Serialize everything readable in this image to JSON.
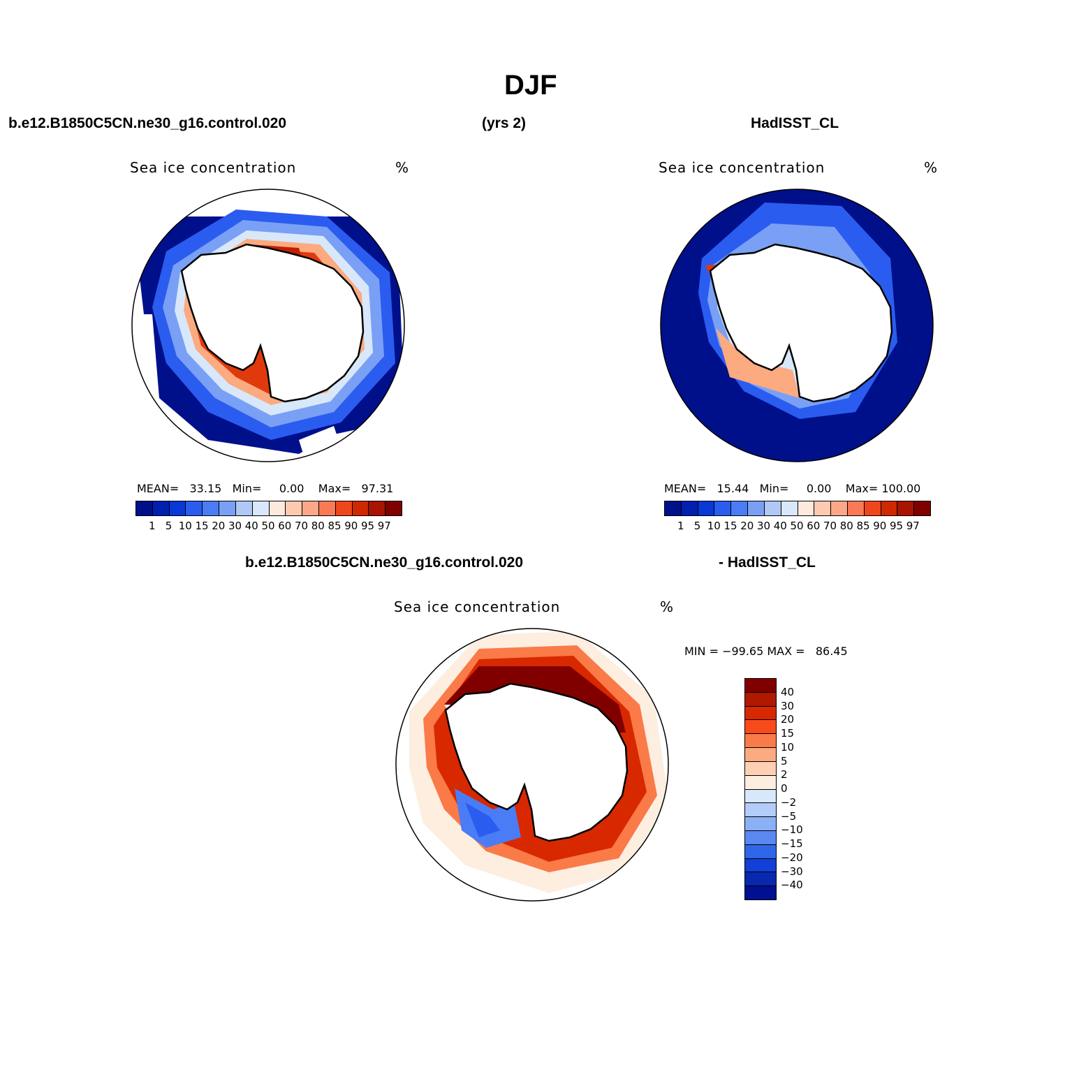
{
  "title": "DJF",
  "header": {
    "case_name": "b.e12.B1850C5CN.ne30_g16.control.020",
    "years": "(yrs 2)",
    "obs_name": "HadISST_CL"
  },
  "panels": {
    "left": {
      "variable": "Sea ice concentration",
      "units": "%",
      "mean_label": "MEAN=",
      "mean": "33.15",
      "min_label": "Min=",
      "min": "0.00",
      "max_label": "Max=",
      "max": "97.31"
    },
    "right": {
      "variable": "Sea ice concentration",
      "units": "%",
      "mean_label": "MEAN=",
      "mean": "15.44",
      "min_label": "Min=",
      "min": "0.00",
      "max_label": "Max=",
      "max": "100.00"
    },
    "diff": {
      "case_name": "b.e12.B1850C5CN.ne30_g16.control.020",
      "obs_name": "- HadISST_CL",
      "variable": "Sea ice concentration",
      "units": "%",
      "minmax": "MIN = −99.65 MAX =   86.45"
    }
  },
  "colorbar_abs": {
    "colors": [
      "#00108a",
      "#0020b0",
      "#0838d8",
      "#2a5cf0",
      "#4a7cf5",
      "#7aa0f5",
      "#b0c8f5",
      "#d8e8fa",
      "#feeadc",
      "#fdcab0",
      "#fca888",
      "#fa7a55",
      "#f0461c",
      "#d02800",
      "#a81400",
      "#800000"
    ],
    "labels": [
      "1",
      "5",
      "10",
      "15",
      "20",
      "30",
      "40",
      "50",
      "60",
      "70",
      "80",
      "85",
      "90",
      "95",
      "97"
    ]
  },
  "colorbar_diff": {
    "colors": [
      "#800000",
      "#b01800",
      "#d82800",
      "#f84a1a",
      "#fa7a48",
      "#fcaa80",
      "#fdd0b4",
      "#fdeee0",
      "#d6e8fa",
      "#b4ccf8",
      "#8cb0f5",
      "#5a88f0",
      "#3066e8",
      "#1040d8",
      "#0828b0",
      "#001090"
    ],
    "labels": [
      "40",
      "30",
      "20",
      "15",
      "10",
      "5",
      "2",
      "0",
      "−2",
      "−5",
      "−10",
      "−15",
      "−20",
      "−30",
      "−40"
    ]
  },
  "map_legend": {
    "icons": [
      "antarctica-coastline"
    ]
  }
}
